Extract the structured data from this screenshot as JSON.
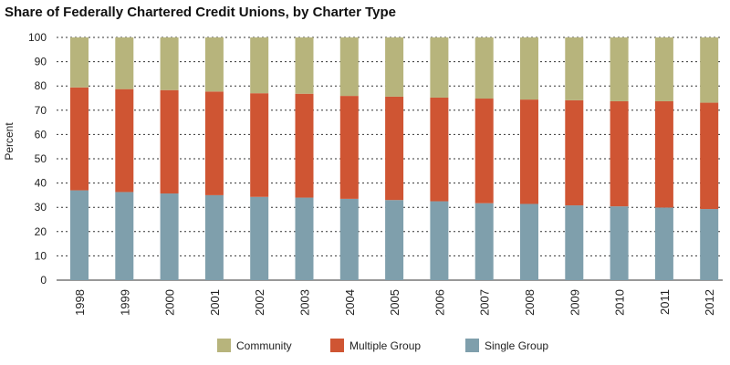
{
  "chart_data": {
    "type": "bar",
    "stacked": true,
    "title": "Share of Federally Chartered Credit Unions, by Charter Type",
    "ylabel": "Percent",
    "xlabel": "",
    "ylim": [
      0,
      100
    ],
    "yticks": [
      0,
      10,
      20,
      30,
      40,
      50,
      60,
      70,
      80,
      90,
      100
    ],
    "grid": true,
    "legend": "bottom",
    "categories": [
      "1998",
      "1999",
      "2000",
      "2001",
      "2002",
      "2003",
      "2004",
      "2005",
      "2006",
      "2007",
      "2008",
      "2009",
      "2010",
      "2011",
      "2012"
    ],
    "series": [
      {
        "name": "Single Group",
        "color": "#7f9fac",
        "values": [
          37,
          36.3,
          35.7,
          35,
          34.3,
          34,
          33.5,
          33,
          32.5,
          31.7,
          31.4,
          30.8,
          30.4,
          29.9,
          29.3
        ]
      },
      {
        "name": "Multiple Group",
        "color": "#cf5533",
        "values": [
          42.4,
          42.4,
          42.6,
          42.7,
          42.7,
          42.8,
          42.4,
          42.6,
          42.7,
          43.1,
          43,
          43.3,
          43.3,
          43.8,
          43.8
        ]
      },
      {
        "name": "Community",
        "color": "#b7b47c",
        "values": [
          20.6,
          21.3,
          21.7,
          22.3,
          23,
          23.2,
          24.1,
          24.4,
          24.8,
          25.2,
          25.6,
          25.9,
          26.3,
          26.3,
          26.9
        ]
      }
    ],
    "legend_order": [
      "Community",
      "Multiple Group",
      "Single Group"
    ]
  }
}
